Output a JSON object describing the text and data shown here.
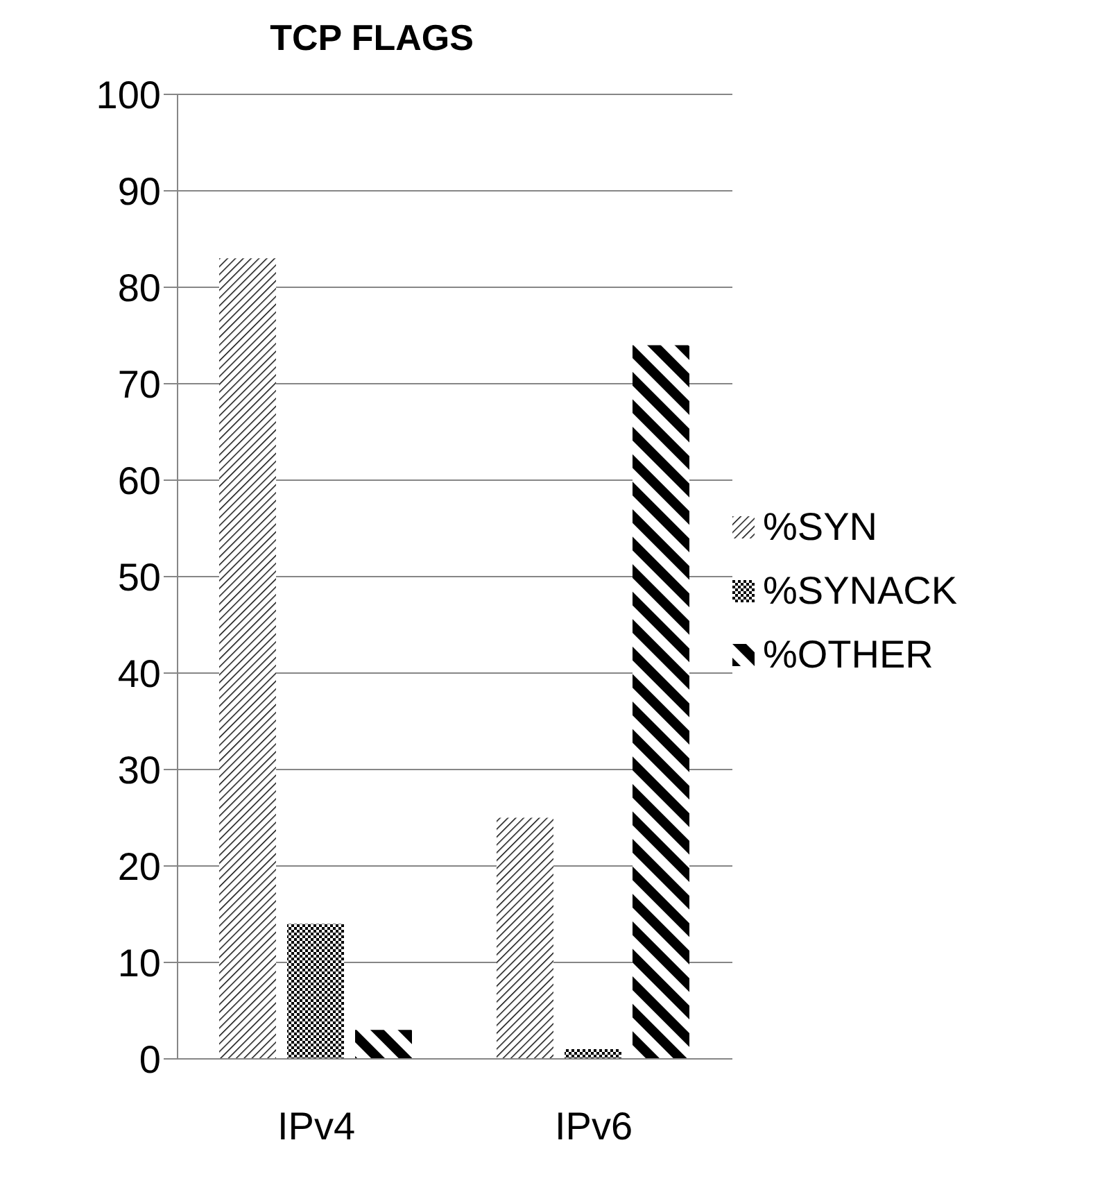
{
  "chart_data": {
    "type": "bar",
    "title": "TCP FLAGS",
    "categories": [
      "IPv4",
      "IPv6"
    ],
    "series": [
      {
        "name": "%SYN",
        "color": "#000000",
        "values": [
          83,
          25
        ]
      },
      {
        "name": "%SYNACK",
        "color": "#000000",
        "values": [
          14,
          1
        ]
      },
      {
        "name": "%OTHER",
        "color": "#000000",
        "values": [
          3,
          74
        ]
      }
    ],
    "ylim": [
      0,
      100
    ],
    "yticks": [
      0,
      10,
      20,
      30,
      40,
      50,
      60,
      70,
      80,
      90,
      100
    ],
    "grid": "y",
    "legend": "right"
  }
}
